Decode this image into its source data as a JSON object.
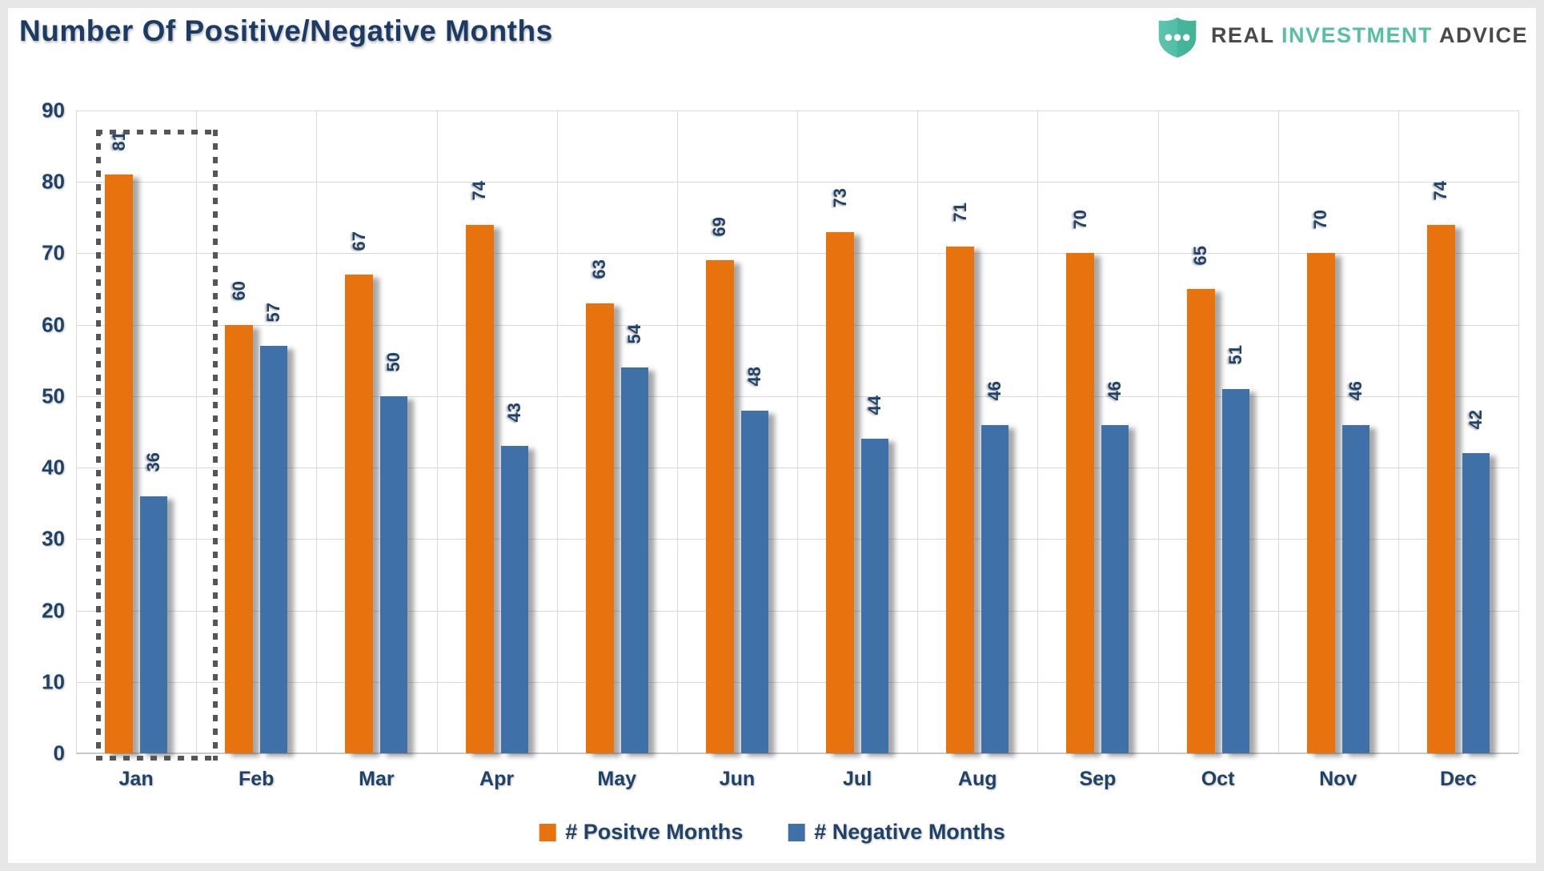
{
  "header": {
    "title": "Number Of Positive/Negative Months",
    "logo": {
      "word_real": "REAL",
      "word_investment": "INVESTMENT",
      "word_advice": "ADVICE",
      "shield_color": "#52bea5",
      "text_dark": "#4a4a4a",
      "text_teal": "#57bfa4"
    }
  },
  "chart_data": {
    "type": "bar",
    "title": "Number Of Positive/Negative Months",
    "categories": [
      "Jan",
      "Feb",
      "Mar",
      "Apr",
      "May",
      "Jun",
      "Jul",
      "Aug",
      "Sep",
      "Oct",
      "Nov",
      "Dec"
    ],
    "series": [
      {
        "name": "# Positve Months",
        "color": "#e8720d",
        "values": [
          81,
          60,
          67,
          74,
          63,
          69,
          73,
          71,
          70,
          65,
          70,
          74
        ]
      },
      {
        "name": "# Negative Months",
        "color": "#4070a8",
        "values": [
          36,
          57,
          50,
          43,
          54,
          48,
          44,
          46,
          46,
          51,
          46,
          42
        ]
      }
    ],
    "ylim": [
      0,
      90
    ],
    "ytick_step": 10,
    "grid": true,
    "legend_position": "bottom",
    "value_labels": "rotated-90",
    "annotation": {
      "type": "dashed-box",
      "target_category": "Jan",
      "color": "#565656"
    }
  },
  "colors": {
    "axis_text": "#1f4268",
    "gridline": "#d9d9d9",
    "background": "#ffffff"
  }
}
